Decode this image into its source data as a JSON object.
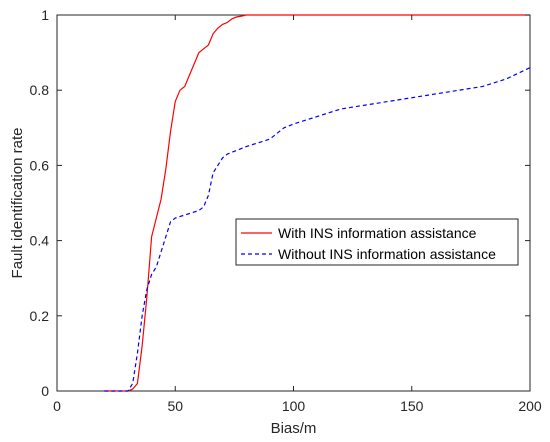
{
  "chart_data": {
    "type": "line",
    "xlabel": "Bias/m",
    "ylabel": "Fault identification rate",
    "xlim": [
      0,
      200
    ],
    "ylim": [
      0,
      1
    ],
    "xticks": [
      0,
      50,
      100,
      150,
      200
    ],
    "yticks": [
      0,
      0.2,
      0.4,
      0.6,
      0.8,
      1
    ],
    "xtick_labels": [
      "0",
      "50",
      "100",
      "150",
      "200"
    ],
    "ytick_labels": [
      "0",
      "0.2",
      "0.4",
      "0.6",
      "0.8",
      "1"
    ],
    "grid": false,
    "legend_position": "right",
    "series": [
      {
        "name": "With INS information assistance",
        "color": "#ff0000",
        "style": "solid",
        "x": [
          20,
          30,
          32,
          34,
          36,
          38,
          40,
          42,
          44,
          46,
          48,
          50,
          52,
          54,
          56,
          58,
          60,
          62,
          64,
          66,
          68,
          70,
          72,
          74,
          76,
          78,
          80,
          82,
          84,
          90,
          100,
          120,
          150,
          200
        ],
        "y": [
          0,
          0,
          0.005,
          0.02,
          0.12,
          0.25,
          0.41,
          0.46,
          0.51,
          0.59,
          0.69,
          0.77,
          0.8,
          0.81,
          0.84,
          0.87,
          0.9,
          0.91,
          0.92,
          0.95,
          0.965,
          0.975,
          0.98,
          0.99,
          0.995,
          0.997,
          1,
          1,
          1,
          1,
          1,
          1,
          1,
          1
        ]
      },
      {
        "name": "Without INS information assistance",
        "color": "#0000ff",
        "style": "dashed",
        "x": [
          20,
          30,
          32,
          34,
          36,
          38,
          40,
          42,
          44,
          46,
          48,
          50,
          55,
          60,
          62,
          64,
          66,
          68,
          70,
          72,
          74,
          76,
          80,
          90,
          96,
          100,
          110,
          120,
          130,
          140,
          150,
          160,
          170,
          180,
          190,
          200
        ],
        "y": [
          0,
          0,
          0.02,
          0.1,
          0.2,
          0.27,
          0.31,
          0.33,
          0.37,
          0.41,
          0.45,
          0.46,
          0.47,
          0.48,
          0.49,
          0.52,
          0.58,
          0.6,
          0.62,
          0.63,
          0.635,
          0.64,
          0.65,
          0.67,
          0.7,
          0.71,
          0.73,
          0.75,
          0.76,
          0.77,
          0.78,
          0.79,
          0.8,
          0.81,
          0.83,
          0.86
        ]
      }
    ]
  }
}
